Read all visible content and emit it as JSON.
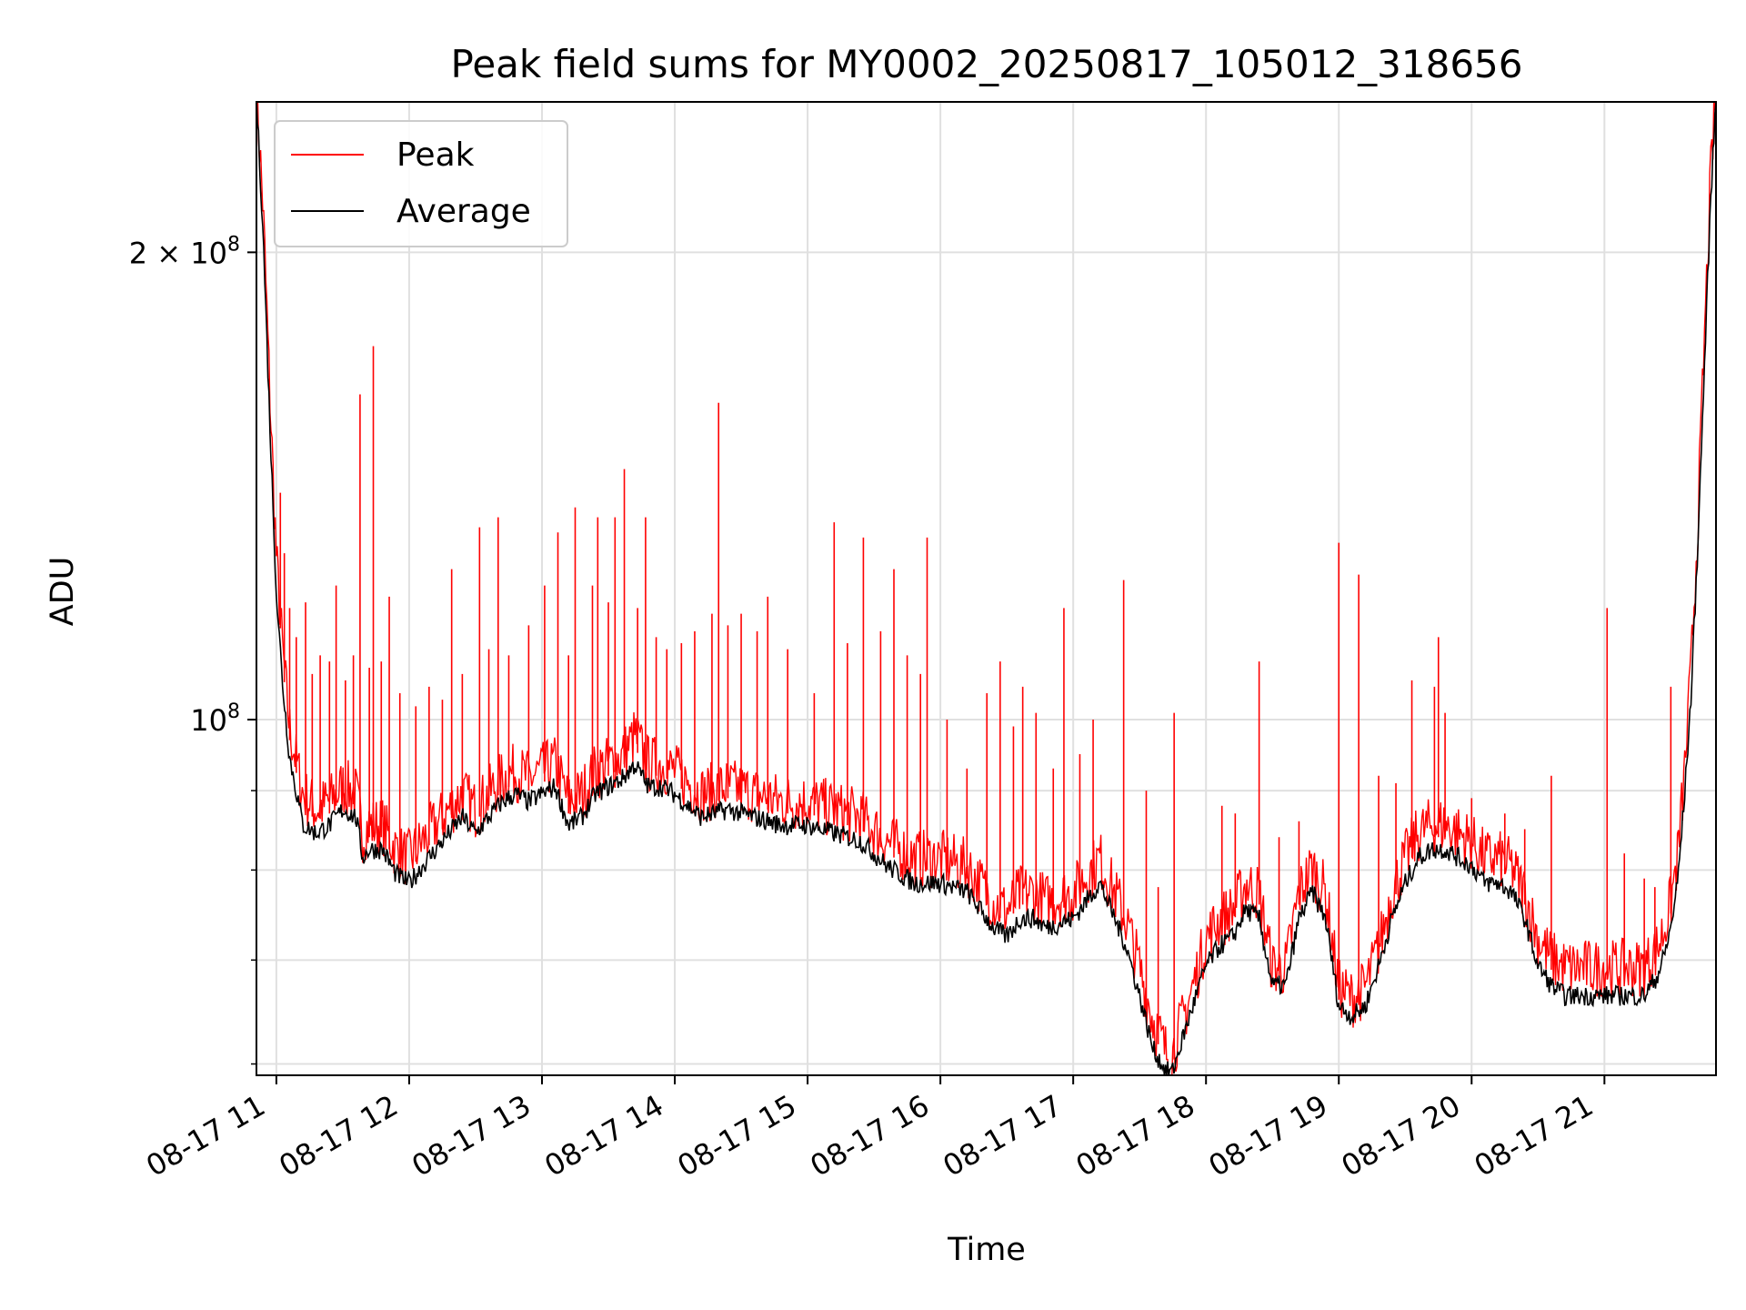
{
  "chart_data": {
    "type": "line",
    "title": "Peak field sums for MY0002_20250817_105012_318656",
    "xlabel": "Time",
    "ylabel": "ADU",
    "yscale": "log",
    "grid": true,
    "legend_placement": "top-left",
    "x_tick_labels": [
      "08-17 11",
      "08-17 12",
      "08-17 13",
      "08-17 14",
      "08-17 15",
      "08-17 16",
      "08-17 17",
      "08-17 18",
      "08-17 19",
      "08-17 20",
      "08-17 21"
    ],
    "x_ticks_hours": [
      11,
      12,
      13,
      14,
      15,
      16,
      17,
      18,
      19,
      20,
      21
    ],
    "xlim_hours": [
      10.85,
      21.84
    ],
    "ylim": [
      59000000,
      250000000
    ],
    "y_major_ticks": [
      {
        "value": 100000000,
        "base": "10",
        "exp": "8",
        "coef": ""
      },
      {
        "value": 200000000,
        "base": "10",
        "exp": "8",
        "coef": "2 × "
      }
    ],
    "y_minor_ticks": [
      60000000,
      70000000,
      80000000,
      90000000
    ],
    "series": [
      {
        "name": "Peak",
        "color": "#ff0000",
        "x": [
          10.85,
          10.9,
          10.95,
          11.0,
          11.05,
          11.1,
          11.2,
          11.3,
          11.4,
          11.5,
          11.6,
          11.65,
          11.7,
          11.8,
          11.9,
          12.0,
          12.1,
          12.2,
          12.3,
          12.4,
          12.5,
          12.6,
          12.7,
          12.8,
          12.9,
          13.0,
          13.1,
          13.2,
          13.3,
          13.4,
          13.5,
          13.6,
          13.7,
          13.8,
          13.9,
          14.0,
          14.2,
          14.4,
          14.6,
          14.8,
          15.0,
          15.2,
          15.4,
          15.6,
          15.8,
          16.0,
          16.2,
          16.4,
          16.5,
          16.6,
          16.7,
          16.8,
          17.0,
          17.2,
          17.4,
          17.5,
          17.6,
          17.7,
          17.75,
          17.8,
          17.9,
          18.0,
          18.1,
          18.2,
          18.3,
          18.4,
          18.5,
          18.6,
          18.7,
          18.8,
          18.9,
          19.0,
          19.1,
          19.2,
          19.3,
          19.4,
          19.5,
          19.6,
          19.7,
          19.8,
          19.9,
          20.0,
          20.1,
          20.2,
          20.3,
          20.4,
          20.5,
          20.6,
          20.7,
          20.8,
          20.9,
          21.0,
          21.1,
          21.2,
          21.3,
          21.4,
          21.45,
          21.5,
          21.55,
          21.6,
          21.65,
          21.7,
          21.75,
          21.8,
          21.84
        ],
        "y": [
          250000000,
          210000000,
          160000000,
          125000000,
          108000000,
          97000000,
          88000000,
          86000000,
          87000000,
          89000000,
          88000000,
          83000000,
          84000000,
          84000000,
          81000000,
          80000000,
          82000000,
          84000000,
          86000000,
          88000000,
          86000000,
          88000000,
          90000000,
          91000000,
          90000000,
          91000000,
          92000000,
          87000000,
          88000000,
          91000000,
          92000000,
          93000000,
          96000000,
          92000000,
          92000000,
          91000000,
          88000000,
          89000000,
          88000000,
          87000000,
          87000000,
          86000000,
          85000000,
          82000000,
          80000000,
          80000000,
          79000000,
          75000000,
          74000000,
          76000000,
          76000000,
          75000000,
          76000000,
          80000000,
          73000000,
          68000000,
          63000000,
          60000000,
          60000000,
          62000000,
          66000000,
          71000000,
          73000000,
          74000000,
          77000000,
          76000000,
          68000000,
          68000000,
          76000000,
          79000000,
          76000000,
          66000000,
          65000000,
          66000000,
          70000000,
          76000000,
          80000000,
          83000000,
          84000000,
          84000000,
          83000000,
          82000000,
          80000000,
          80000000,
          79000000,
          76000000,
          71000000,
          69000000,
          68000000,
          68000000,
          68000000,
          68000000,
          68000000,
          68000000,
          68000000,
          70000000,
          72000000,
          75000000,
          80000000,
          90000000,
          105000000,
          130000000,
          170000000,
          220000000,
          250000000
        ],
        "spikes": [
          {
            "x": 11.03,
            "y": 140000000
          },
          {
            "x": 11.06,
            "y": 128000000
          },
          {
            "x": 11.1,
            "y": 118000000
          },
          {
            "x": 11.15,
            "y": 113000000
          },
          {
            "x": 11.22,
            "y": 119000000
          },
          {
            "x": 11.27,
            "y": 107000000
          },
          {
            "x": 11.33,
            "y": 110000000
          },
          {
            "x": 11.4,
            "y": 109000000
          },
          {
            "x": 11.45,
            "y": 122000000
          },
          {
            "x": 11.52,
            "y": 106000000
          },
          {
            "x": 11.58,
            "y": 110000000
          },
          {
            "x": 11.63,
            "y": 162000000
          },
          {
            "x": 11.7,
            "y": 108000000
          },
          {
            "x": 11.73,
            "y": 174000000
          },
          {
            "x": 11.79,
            "y": 109000000
          },
          {
            "x": 11.85,
            "y": 120000000
          },
          {
            "x": 11.93,
            "y": 104000000
          },
          {
            "x": 12.05,
            "y": 102000000
          },
          {
            "x": 12.15,
            "y": 105000000
          },
          {
            "x": 12.25,
            "y": 103000000
          },
          {
            "x": 12.32,
            "y": 125000000
          },
          {
            "x": 12.4,
            "y": 107000000
          },
          {
            "x": 12.53,
            "y": 133000000
          },
          {
            "x": 12.6,
            "y": 111000000
          },
          {
            "x": 12.67,
            "y": 135000000
          },
          {
            "x": 12.75,
            "y": 110000000
          },
          {
            "x": 12.9,
            "y": 115000000
          },
          {
            "x": 13.02,
            "y": 122000000
          },
          {
            "x": 13.12,
            "y": 132000000
          },
          {
            "x": 13.2,
            "y": 110000000
          },
          {
            "x": 13.25,
            "y": 137000000
          },
          {
            "x": 13.38,
            "y": 122000000
          },
          {
            "x": 13.42,
            "y": 135000000
          },
          {
            "x": 13.5,
            "y": 119000000
          },
          {
            "x": 13.55,
            "y": 135000000
          },
          {
            "x": 13.62,
            "y": 145000000
          },
          {
            "x": 13.72,
            "y": 118000000
          },
          {
            "x": 13.78,
            "y": 135000000
          },
          {
            "x": 13.86,
            "y": 113000000
          },
          {
            "x": 13.94,
            "y": 111000000
          },
          {
            "x": 14.05,
            "y": 112000000
          },
          {
            "x": 14.15,
            "y": 114000000
          },
          {
            "x": 14.28,
            "y": 117000000
          },
          {
            "x": 14.33,
            "y": 160000000
          },
          {
            "x": 14.4,
            "y": 115000000
          },
          {
            "x": 14.5,
            "y": 117000000
          },
          {
            "x": 14.62,
            "y": 114000000
          },
          {
            "x": 14.7,
            "y": 120000000
          },
          {
            "x": 14.85,
            "y": 111000000
          },
          {
            "x": 15.05,
            "y": 104000000
          },
          {
            "x": 15.2,
            "y": 134000000
          },
          {
            "x": 15.3,
            "y": 112000000
          },
          {
            "x": 15.42,
            "y": 131000000
          },
          {
            "x": 15.55,
            "y": 114000000
          },
          {
            "x": 15.65,
            "y": 125000000
          },
          {
            "x": 15.75,
            "y": 110000000
          },
          {
            "x": 15.85,
            "y": 107000000
          },
          {
            "x": 15.9,
            "y": 131000000
          },
          {
            "x": 16.05,
            "y": 100000000
          },
          {
            "x": 16.2,
            "y": 93000000
          },
          {
            "x": 16.35,
            "y": 104000000
          },
          {
            "x": 16.45,
            "y": 109000000
          },
          {
            "x": 16.55,
            "y": 99000000
          },
          {
            "x": 16.62,
            "y": 105000000
          },
          {
            "x": 16.72,
            "y": 101000000
          },
          {
            "x": 16.85,
            "y": 93000000
          },
          {
            "x": 16.93,
            "y": 118000000
          },
          {
            "x": 17.05,
            "y": 95000000
          },
          {
            "x": 17.15,
            "y": 100000000
          },
          {
            "x": 17.38,
            "y": 123000000
          },
          {
            "x": 17.55,
            "y": 90000000
          },
          {
            "x": 17.64,
            "y": 78000000
          },
          {
            "x": 17.76,
            "y": 101000000
          },
          {
            "x": 18.12,
            "y": 88000000
          },
          {
            "x": 18.22,
            "y": 87000000
          },
          {
            "x": 18.4,
            "y": 109000000
          },
          {
            "x": 18.55,
            "y": 84000000
          },
          {
            "x": 18.7,
            "y": 86000000
          },
          {
            "x": 19.0,
            "y": 130000000
          },
          {
            "x": 19.15,
            "y": 124000000
          },
          {
            "x": 19.3,
            "y": 92000000
          },
          {
            "x": 19.43,
            "y": 91000000
          },
          {
            "x": 19.55,
            "y": 106000000
          },
          {
            "x": 19.72,
            "y": 105000000
          },
          {
            "x": 19.75,
            "y": 113000000
          },
          {
            "x": 19.8,
            "y": 101000000
          },
          {
            "x": 20.0,
            "y": 89000000
          },
          {
            "x": 20.25,
            "y": 87000000
          },
          {
            "x": 20.4,
            "y": 85000000
          },
          {
            "x": 20.6,
            "y": 92000000
          },
          {
            "x": 21.02,
            "y": 118000000
          },
          {
            "x": 21.15,
            "y": 82000000
          },
          {
            "x": 21.3,
            "y": 79000000
          },
          {
            "x": 21.38,
            "y": 78000000
          },
          {
            "x": 21.5,
            "y": 105000000
          }
        ]
      },
      {
        "name": "Average",
        "color": "#000000",
        "x": [
          10.85,
          10.9,
          10.95,
          11.0,
          11.05,
          11.1,
          11.2,
          11.3,
          11.4,
          11.5,
          11.6,
          11.65,
          11.7,
          11.8,
          11.9,
          12.0,
          12.1,
          12.2,
          12.3,
          12.4,
          12.5,
          12.6,
          12.7,
          12.8,
          12.9,
          13.0,
          13.1,
          13.2,
          13.3,
          13.4,
          13.5,
          13.6,
          13.7,
          13.8,
          13.9,
          14.0,
          14.2,
          14.4,
          14.6,
          14.8,
          15.0,
          15.2,
          15.4,
          15.6,
          15.8,
          16.0,
          16.2,
          16.4,
          16.5,
          16.6,
          16.7,
          16.8,
          17.0,
          17.2,
          17.4,
          17.5,
          17.6,
          17.7,
          17.75,
          17.8,
          17.9,
          18.0,
          18.1,
          18.2,
          18.3,
          18.4,
          18.5,
          18.6,
          18.7,
          18.8,
          18.9,
          19.0,
          19.1,
          19.2,
          19.3,
          19.4,
          19.5,
          19.6,
          19.7,
          19.8,
          19.9,
          20.0,
          20.1,
          20.2,
          20.3,
          20.4,
          20.5,
          20.6,
          20.7,
          20.8,
          20.9,
          21.0,
          21.1,
          21.2,
          21.3,
          21.4,
          21.45,
          21.5,
          21.55,
          21.6,
          21.65,
          21.7,
          21.75,
          21.8,
          21.84
        ],
        "y": [
          250000000,
          205000000,
          155000000,
          120000000,
          104000000,
          94000000,
          85000000,
          84000000,
          85000000,
          87000000,
          86000000,
          81000000,
          82000000,
          82000000,
          79000000,
          78000000,
          80000000,
          82000000,
          84000000,
          86000000,
          84000000,
          86000000,
          88000000,
          89000000,
          88000000,
          89000000,
          90000000,
          85000000,
          86000000,
          89000000,
          90000000,
          91000000,
          93000000,
          90000000,
          90000000,
          89000000,
          86000000,
          87000000,
          86000000,
          85000000,
          85000000,
          84000000,
          83000000,
          80000000,
          78000000,
          78000000,
          77000000,
          73000000,
          72000000,
          74000000,
          74000000,
          73000000,
          74000000,
          78000000,
          71000000,
          66000000,
          61000000,
          59000000,
          59000000,
          61000000,
          65000000,
          69000000,
          71000000,
          72000000,
          75000000,
          74000000,
          67000000,
          67000000,
          74000000,
          77000000,
          74000000,
          65000000,
          64000000,
          65000000,
          69000000,
          74000000,
          78000000,
          81000000,
          82000000,
          82000000,
          81000000,
          80000000,
          78000000,
          78000000,
          77000000,
          74000000,
          69000000,
          67000000,
          66000000,
          66000000,
          66000000,
          66000000,
          66000000,
          66000000,
          66000000,
          68000000,
          70000000,
          73000000,
          78000000,
          88000000,
          102000000,
          127000000,
          165000000,
          215000000,
          250000000
        ]
      }
    ]
  }
}
